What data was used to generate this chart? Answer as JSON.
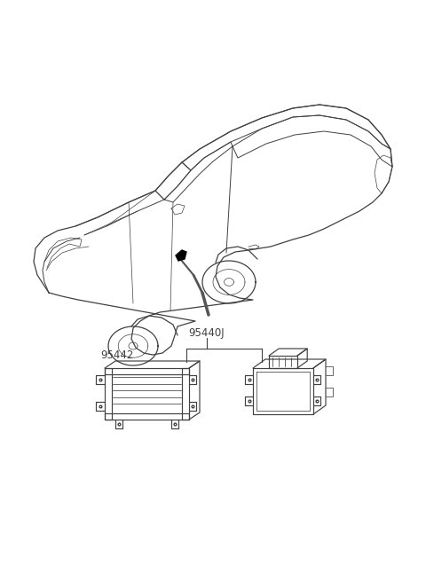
{
  "bg_color": "#ffffff",
  "line_color": "#404040",
  "label_95440J": "95440J",
  "label_95442": "95442",
  "fig_width": 4.8,
  "fig_height": 6.55,
  "dpi": 100,
  "car_scale": 1.0,
  "car_ox": 25,
  "car_oy": 30
}
